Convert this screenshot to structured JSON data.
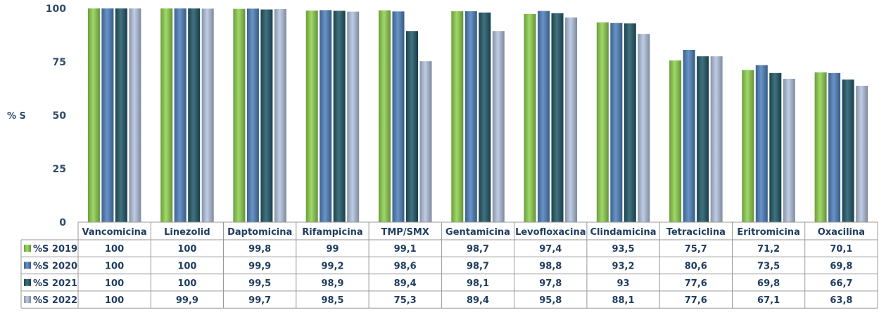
{
  "chart_data": {
    "type": "bar",
    "ylabel": "% S",
    "ylim": [
      0,
      100
    ],
    "yticks": [
      0,
      25,
      50,
      75,
      100
    ],
    "grid": false,
    "legend": "data-table-rows",
    "categories": [
      "Vancomicina",
      "Linezolid",
      "Daptomicina",
      "Rifampicina",
      "TMP/SMX",
      "Gentamicina",
      "Levofloxacina",
      "Clindamicina",
      "Tetraciclina",
      "Eritromicina",
      "Oxacilina"
    ],
    "series": [
      {
        "name": "%S 2019",
        "color": "#8fd14f",
        "values": [
          100,
          100,
          99.8,
          99,
          99.1,
          98.7,
          97.4,
          93.5,
          75.7,
          71.2,
          70.1
        ],
        "labels": [
          "100",
          "100",
          "99,8",
          "99",
          "99,1",
          "98,7",
          "97,4",
          "93,5",
          "75,7",
          "71,2",
          "70,1"
        ]
      },
      {
        "name": "%S 2020",
        "color": "#4f81bd",
        "values": [
          100,
          100,
          99.9,
          99.2,
          98.6,
          98.7,
          98.8,
          93.2,
          80.6,
          73.5,
          69.8
        ],
        "labels": [
          "100",
          "100",
          "99,9",
          "99,2",
          "98,6",
          "98,7",
          "98,8",
          "93,2",
          "80,6",
          "73,5",
          "69,8"
        ]
      },
      {
        "name": "%S 2021",
        "color": "#215968",
        "values": [
          100,
          100,
          99.5,
          98.9,
          89.4,
          98.1,
          97.8,
          93,
          77.6,
          69.8,
          66.7
        ],
        "labels": [
          "100",
          "100",
          "99,5",
          "98,9",
          "89,4",
          "98,1",
          "97,8",
          "93",
          "77,6",
          "69,8",
          "66,7"
        ]
      },
      {
        "name": "%S 2022",
        "color": "#b4c4df",
        "values": [
          100,
          99.9,
          99.7,
          98.5,
          75.3,
          89.4,
          95.8,
          88.1,
          77.6,
          67.1,
          63.8
        ],
        "labels": [
          "100",
          "99,9",
          "99,7",
          "98,5",
          "75,3",
          "89,4",
          "95,8",
          "88,1",
          "77,6",
          "67,1",
          "63,8"
        ]
      }
    ]
  }
}
